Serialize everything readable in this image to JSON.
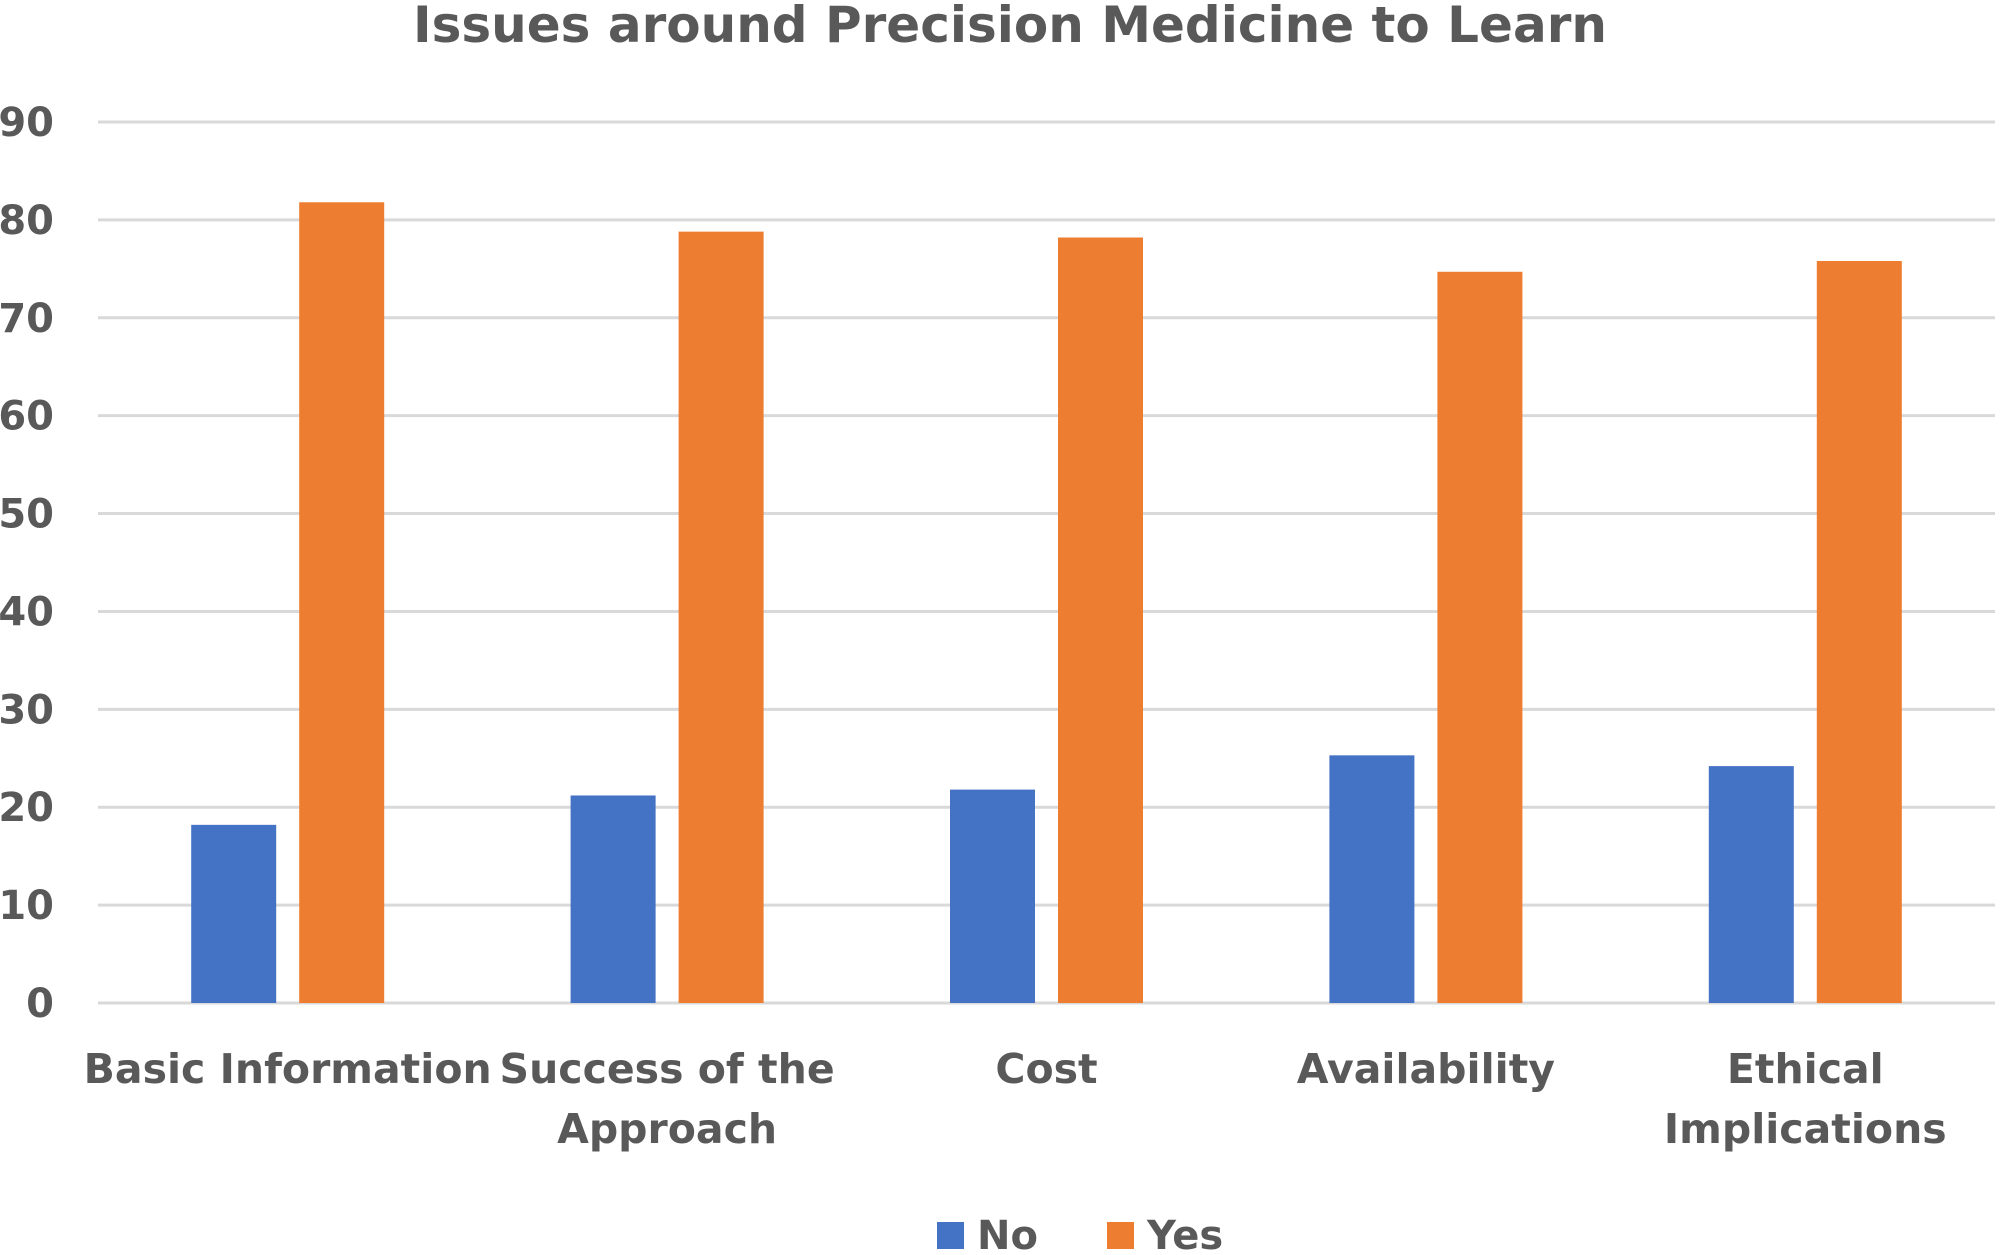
{
  "chart_data": {
    "type": "bar",
    "title": "Issues around Precision Medicine to Learn",
    "xlabel": "",
    "ylabel": "",
    "ylim": [
      0,
      90
    ],
    "yticks": [
      0,
      10,
      20,
      30,
      40,
      50,
      60,
      70,
      80,
      90
    ],
    "grid": true,
    "legend_position": "bottom",
    "categories": [
      [
        "Basic Information"
      ],
      [
        "Success of the",
        "Approach"
      ],
      [
        "Cost"
      ],
      [
        "Availability"
      ],
      [
        "Ethical",
        "Implications"
      ]
    ],
    "series": [
      {
        "name": "No",
        "color": "#4472c4",
        "values": [
          18.2,
          21.2,
          21.8,
          25.3,
          24.2
        ]
      },
      {
        "name": "Yes",
        "color": "#ed7d31",
        "values": [
          81.8,
          78.8,
          78.2,
          74.7,
          75.8
        ]
      }
    ]
  }
}
